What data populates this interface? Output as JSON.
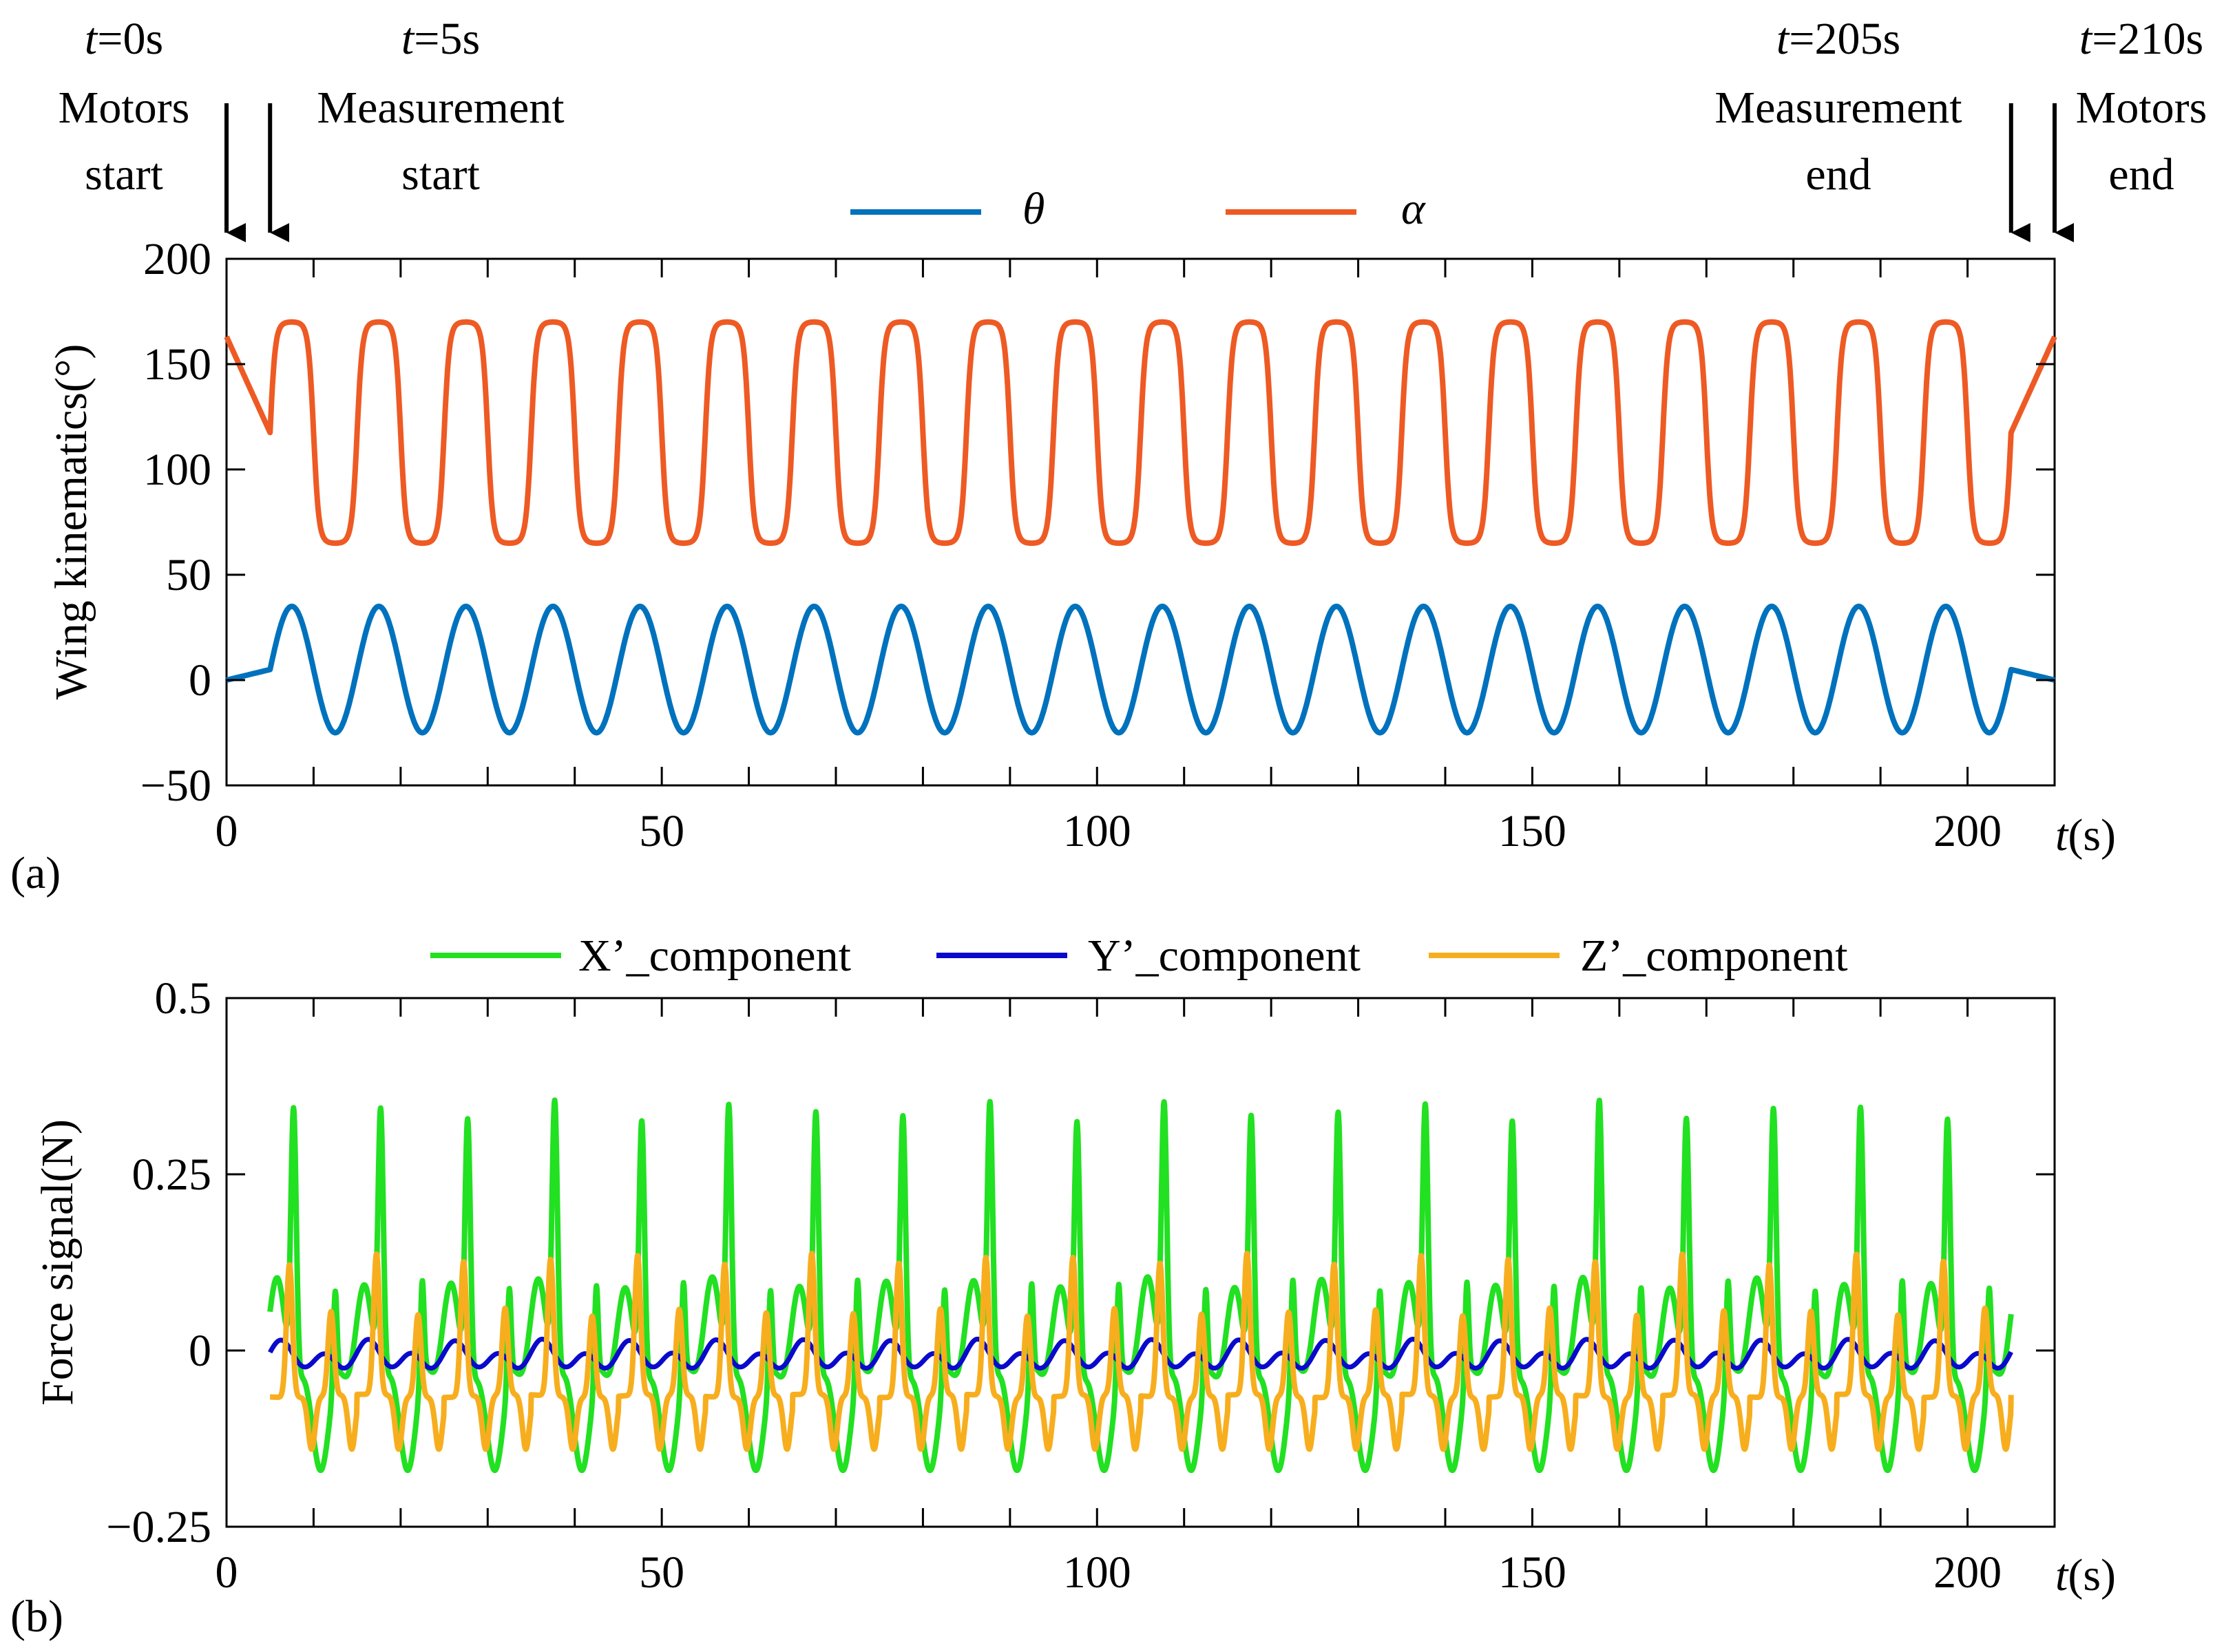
{
  "annotations": [
    {
      "time": 0,
      "time_var": "t",
      "time_text": "=0s",
      "line1": "Motors",
      "line2": "start"
    },
    {
      "time": 5,
      "time_var": "t",
      "time_text": "=5s",
      "line1": "Measurement",
      "line2": "start"
    },
    {
      "time": 205,
      "time_var": "t",
      "time_text": "=205s",
      "line1": "Measurement",
      "line2": "end"
    },
    {
      "time": 210,
      "time_var": "t",
      "time_text": "=210s",
      "line1": "Motors",
      "line2": "end"
    }
  ],
  "chart_data": [
    {
      "type": "line",
      "panel_label": "(a)",
      "title": "",
      "xlabel_var": "t",
      "xlabel_unit": "(s)",
      "ylabel": "Wing kinematics(°)",
      "xlim": [
        0,
        210
      ],
      "ylim": [
        -50,
        200
      ],
      "xticks": [
        0,
        50,
        100,
        150,
        200
      ],
      "xtick_labels": [
        "0",
        "50",
        "100",
        "150",
        "200"
      ],
      "yticks": [
        -50,
        0,
        50,
        100,
        150,
        200
      ],
      "ytick_labels": [
        "−50",
        "0",
        "50",
        "100",
        "150",
        "200"
      ],
      "minor_tick_step": 10,
      "legend_position": "top",
      "grid": false,
      "series": [
        {
          "name": "θ",
          "color": "#0072BD",
          "waveform": "sine",
          "period_s": 10,
          "mean": 5,
          "amplitude": 30,
          "start_value": 0,
          "end_value": 0,
          "ramp_end_s": 5,
          "ramp_start_s": 205
        },
        {
          "name": "α",
          "color": "#EE5A24",
          "waveform": "rounded-square",
          "period_s": 10,
          "mean": 117.5,
          "amplitude": 52.5,
          "start_value": 163,
          "end_value": 163,
          "ramp_end_s": 5,
          "ramp_start_s": 205
        }
      ]
    },
    {
      "type": "line",
      "panel_label": "(b)",
      "title": "",
      "xlabel_var": "t",
      "xlabel_unit": "(s)",
      "ylabel": "Force signal(N)",
      "xlim": [
        0,
        210
      ],
      "ylim": [
        -0.25,
        0.5
      ],
      "xticks": [
        0,
        50,
        100,
        150,
        200
      ],
      "xtick_labels": [
        "0",
        "50",
        "100",
        "150",
        "200"
      ],
      "yticks": [
        -0.25,
        0,
        0.25,
        0.5
      ],
      "ytick_labels": [
        "−0.25",
        "0",
        "0.25",
        "0.5"
      ],
      "minor_tick_step": 10,
      "legend_position": "top",
      "grid": false,
      "time_range_s": [
        5,
        205
      ],
      "period_s": 10,
      "series": [
        {
          "name": "X’_component",
          "color": "#22E022",
          "max": 0.34,
          "min": -0.17
        },
        {
          "name": "Y’_component",
          "color": "#0A0ACC",
          "max": 0.015,
          "min": -0.025
        },
        {
          "name": "Z’_component",
          "color": "#F7AE1E",
          "max": 0.13,
          "min": -0.14
        }
      ]
    }
  ]
}
